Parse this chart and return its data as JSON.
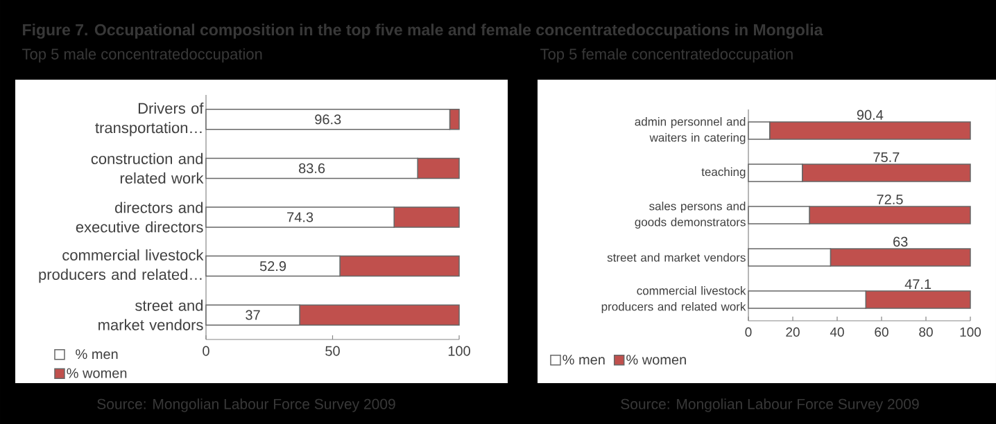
{
  "chart_data": [
    {
      "type": "bar",
      "orientation": "horizontal",
      "stacked": true,
      "title": "Figure 7. Occupational composition in the top five male and female concentratedoccupations in Mongolia",
      "subtitle": "Top 5 male concentratedoccupation",
      "categories": [
        "Drivers of transportation…",
        "construction and related work",
        "directors and executive directors",
        "commercial livestock producers and related…",
        "street and market vendors"
      ],
      "series": [
        {
          "name": "% men",
          "color": "#ffffff",
          "values": [
            96.3,
            83.6,
            74.3,
            52.9,
            37
          ],
          "value_labels": [
            "96.3",
            "83.6",
            "74.3",
            "52.9",
            "37"
          ]
        },
        {
          "name": "% women",
          "color": "#c0504d",
          "values": [
            3.7,
            16.4,
            25.7,
            47.1,
            63
          ]
        }
      ],
      "xlim": [
        0,
        100
      ],
      "xticks": [
        0,
        50,
        100
      ],
      "legend": "bottom left",
      "annotations": [
        "Source: Mongolian Labour Force Survey 2009"
      ]
    },
    {
      "type": "bar",
      "orientation": "horizontal",
      "stacked": true,
      "subtitle": "Top 5 female concentratedoccupation",
      "categories": [
        "admin personnel and waiters in catering",
        "teaching",
        "sales persons and goods demonstrators",
        "street and market vendors",
        "commercial livestock producers and related work"
      ],
      "series": [
        {
          "name": "% men",
          "color": "#ffffff",
          "values": [
            9.6,
            24.3,
            27.5,
            37,
            52.9
          ]
        },
        {
          "name": "% women",
          "color": "#c0504d",
          "values": [
            90.4,
            75.7,
            72.5,
            63,
            47.1
          ],
          "value_labels": [
            "90.4",
            "75.7",
            "72.5",
            "63",
            "47.1"
          ]
        }
      ],
      "xlim": [
        0,
        100
      ],
      "xticks": [
        0,
        20,
        40,
        60,
        80,
        100
      ],
      "legend": "bottom",
      "annotations": [
        "Source: Mongolian Labour Force Survey 2009"
      ]
    }
  ]
}
